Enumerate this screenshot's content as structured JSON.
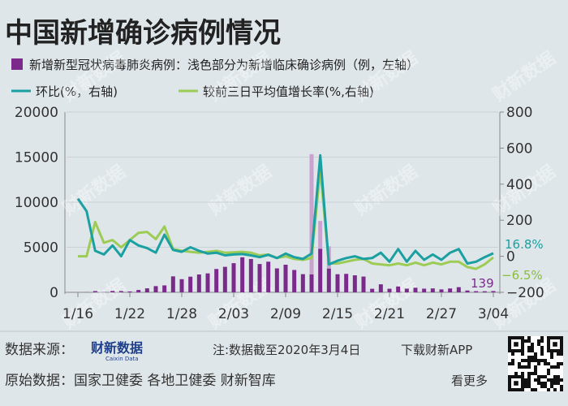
{
  "header": {
    "title": "中国新增确诊病例情况"
  },
  "legend": {
    "bars": "新增新型冠状病毒肺炎病例：浅色部分为新增临床确诊病例（例，左轴）",
    "ring": "环比(%，右轴)",
    "avg": "较前三日平均值增长率(%,右轴)"
  },
  "footer": {
    "source_label": "数据来源：",
    "brand": "财新数据",
    "brand_en": "Caixin Data",
    "note": "注:数据截至2020年3月4日",
    "download": "下载财新APP",
    "origin": "原始数据：国家卫健委  各地卫健委  财新智库",
    "more": "看更多"
  },
  "watermark": "财新数据",
  "colors": {
    "background": "#dfe6ea",
    "bar_dark": "#7b2a8c",
    "bar_light": "#c9a2cf",
    "ring_line": "#1aa0a0",
    "avg_line": "#9ccc55",
    "ring_label": "#1aa0a0",
    "avg_label": "#8bbd3f",
    "bar_label": "#7b2a8c"
  },
  "chart_data": {
    "type": "bar",
    "x_ticks": [
      "1/16",
      "1/22",
      "1/28",
      "2/03",
      "2/09",
      "2/15",
      "2/21",
      "2/27",
      "3/04"
    ],
    "dates": [
      "1/16",
      "1/17",
      "1/18",
      "1/19",
      "1/20",
      "1/21",
      "1/22",
      "1/23",
      "1/24",
      "1/25",
      "1/26",
      "1/27",
      "1/28",
      "1/29",
      "1/30",
      "1/31",
      "2/01",
      "2/02",
      "2/03",
      "2/04",
      "2/05",
      "2/06",
      "2/07",
      "2/08",
      "2/09",
      "2/10",
      "2/11",
      "2/12",
      "2/13",
      "2/14",
      "2/15",
      "2/16",
      "2/17",
      "2/18",
      "2/19",
      "2/20",
      "2/21",
      "2/22",
      "2/23",
      "2/24",
      "2/25",
      "2/26",
      "2/27",
      "2/28",
      "2/29",
      "3/01",
      "3/02",
      "3/03",
      "3/04"
    ],
    "left_axis": {
      "ylim": [
        0,
        20000
      ],
      "ticks": [
        "0",
        "5000",
        "10000",
        "15000",
        "20000"
      ]
    },
    "right_axis": {
      "ylim": [
        -200,
        800
      ],
      "ticks": [
        "-200",
        "0",
        "200",
        "400",
        "600",
        "800"
      ]
    },
    "series": [
      {
        "kind": "bar",
        "role": "confirmed",
        "values": [
          4,
          17,
          136,
          19,
          151,
          140,
          97,
          259,
          444,
          688,
          769,
          1771,
          1459,
          1737,
          1981,
          2102,
          2590,
          2829,
          3235,
          3887,
          3694,
          3143,
          3399,
          2656,
          3062,
          2478,
          2015,
          2000,
          4823,
          2641,
          2009,
          2048,
          1886,
          1749,
          394,
          889,
          397,
          648,
          409,
          508,
          406,
          433,
          327,
          427,
          573,
          202,
          125,
          119,
          139
        ]
      },
      {
        "kind": "bar",
        "role": "clinical",
        "values": [
          0,
          0,
          0,
          0,
          0,
          0,
          0,
          0,
          0,
          0,
          0,
          0,
          0,
          0,
          0,
          0,
          0,
          0,
          0,
          0,
          0,
          0,
          0,
          0,
          0,
          0,
          0,
          13332,
          3095,
          2462,
          0,
          0,
          0,
          0,
          0,
          0,
          0,
          0,
          0,
          0,
          0,
          0,
          0,
          0,
          0,
          0,
          0,
          0,
          0
        ]
      },
      {
        "kind": "line",
        "role": "ring",
        "values": [
          320,
          250,
          30,
          10,
          60,
          0,
          90,
          60,
          45,
          20,
          120,
          35,
          25,
          50,
          30,
          15,
          20,
          5,
          10,
          12,
          5,
          -5,
          8,
          -10,
          15,
          -5,
          -15,
          15,
          560,
          -45,
          -25,
          -10,
          0,
          -15,
          -10,
          20,
          -30,
          40,
          -30,
          30,
          -20,
          10,
          -20,
          20,
          40,
          -40,
          -30,
          -5,
          16.8
        ]
      },
      {
        "kind": "line",
        "role": "avg",
        "values": [
          0,
          0,
          190,
          75,
          90,
          50,
          90,
          130,
          135,
          95,
          165,
          40,
          30,
          25,
          20,
          25,
          30,
          20,
          22,
          25,
          20,
          5,
          10,
          -10,
          0,
          -15,
          -20,
          -10,
          480,
          -40,
          -40,
          -30,
          -20,
          -15,
          -40,
          -45,
          -50,
          -40,
          -50,
          -35,
          -50,
          -35,
          -45,
          -30,
          -30,
          -60,
          -70,
          -45,
          -6.5
        ]
      }
    ],
    "annotations": {
      "last_bar": "139",
      "last_ring": "16.8%",
      "last_avg": "−6.5%"
    }
  }
}
